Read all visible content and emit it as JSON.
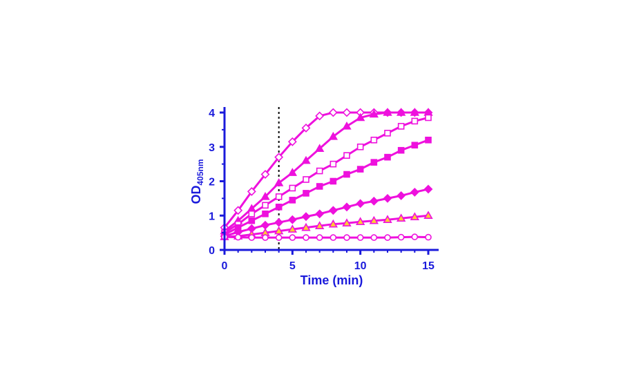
{
  "colors": {
    "axis": "#1a1adb",
    "series": "#ee11dd",
    "triangle_fill": "#ffcc33",
    "threshold": "#000000"
  },
  "chart_data": {
    "type": "line",
    "title": "",
    "xlabel": "Time (min)",
    "ylabel_main": "OD",
    "ylabel_sub": "405nm",
    "xlim": [
      0,
      15
    ],
    "ylim": [
      0,
      4
    ],
    "xticks": [
      0,
      5,
      10,
      15
    ],
    "yticks": [
      0,
      1,
      2,
      3,
      4
    ],
    "threshold_x": 4,
    "x": [
      0,
      1,
      2,
      3,
      4,
      5,
      6,
      7,
      8,
      9,
      10,
      11,
      12,
      13,
      14,
      15
    ],
    "series": [
      {
        "name": "open-diamond",
        "marker": "diamond",
        "filled": false,
        "values": [
          0.65,
          1.15,
          1.7,
          2.2,
          2.7,
          3.15,
          3.55,
          3.9,
          4.0,
          4.0,
          4.0,
          4.0,
          4.0,
          4.0,
          4.0,
          4.0
        ]
      },
      {
        "name": "filled-triangle",
        "marker": "triangle",
        "filled": true,
        "values": [
          0.55,
          0.85,
          1.2,
          1.55,
          1.95,
          2.25,
          2.6,
          2.95,
          3.3,
          3.6,
          3.85,
          3.95,
          4.0,
          4.0,
          4.0,
          4.0
        ]
      },
      {
        "name": "open-square",
        "marker": "square",
        "filled": false,
        "values": [
          0.5,
          0.75,
          1.05,
          1.3,
          1.55,
          1.8,
          2.05,
          2.3,
          2.5,
          2.75,
          3.0,
          3.2,
          3.4,
          3.6,
          3.75,
          3.85
        ]
      },
      {
        "name": "filled-square",
        "marker": "square",
        "filled": true,
        "values": [
          0.45,
          0.65,
          0.85,
          1.05,
          1.25,
          1.45,
          1.65,
          1.85,
          2.0,
          2.2,
          2.35,
          2.55,
          2.7,
          2.9,
          3.05,
          3.2
        ]
      },
      {
        "name": "filled-diamond",
        "marker": "diamond",
        "filled": true,
        "values": [
          0.4,
          0.52,
          0.62,
          0.72,
          0.8,
          0.88,
          0.97,
          1.05,
          1.15,
          1.25,
          1.35,
          1.42,
          1.5,
          1.58,
          1.68,
          1.77
        ]
      },
      {
        "name": "open-triangle",
        "marker": "triangle",
        "filled": false,
        "values": [
          0.38,
          0.4,
          0.45,
          0.5,
          0.55,
          0.6,
          0.65,
          0.7,
          0.75,
          0.78,
          0.82,
          0.85,
          0.88,
          0.92,
          0.96,
          1.0
        ]
      },
      {
        "name": "open-circle",
        "marker": "circle",
        "filled": false,
        "values": [
          0.38,
          0.37,
          0.36,
          0.36,
          0.36,
          0.36,
          0.36,
          0.36,
          0.36,
          0.36,
          0.36,
          0.36,
          0.36,
          0.37,
          0.38,
          0.37
        ]
      }
    ]
  }
}
